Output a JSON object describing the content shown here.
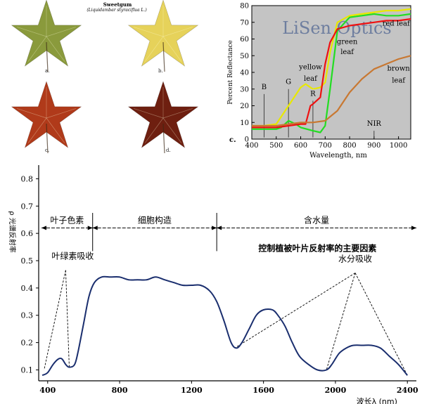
{
  "leaves": {
    "title": "Sweetgum",
    "subtitle": "(Liquidambar styraciflua L.)",
    "labels": [
      "a.",
      "b.",
      "c.",
      "d."
    ],
    "colors": [
      "#8a9a3c",
      "#e6d25a",
      "#b03a1a",
      "#6e1f10"
    ]
  },
  "chart_data": [
    {
      "type": "line",
      "xlabel": "Wavelength, nm",
      "ylabel": "Percent Reflectance",
      "xlim": [
        400,
        1050
      ],
      "ylim": [
        0,
        80
      ],
      "xticks": [
        400,
        500,
        600,
        700,
        800,
        900,
        1000
      ],
      "yticks": [
        0,
        10,
        20,
        30,
        40,
        50,
        60,
        70,
        80
      ],
      "panel_label": "c.",
      "watermark": "LiSen Optics",
      "band_markers": [
        {
          "label": "B",
          "x": 450
        },
        {
          "label": "G",
          "x": 550
        },
        {
          "label": "R",
          "x": 650
        },
        {
          "label": "NIR",
          "x": 900
        }
      ],
      "series": [
        {
          "name": "green leaf",
          "color": "#22dd22",
          "x": [
            400,
            450,
            500,
            520,
            550,
            580,
            600,
            650,
            680,
            700,
            720,
            750,
            800,
            850,
            900,
            950,
            1000,
            1050
          ],
          "y": [
            6,
            6,
            6,
            7,
            11,
            9,
            7,
            5,
            4,
            8,
            30,
            65,
            73,
            74,
            75,
            74,
            74,
            75
          ]
        },
        {
          "name": "yellow leaf",
          "color": "#e8e800",
          "x": [
            400,
            450,
            500,
            550,
            600,
            620,
            650,
            680,
            700,
            720,
            750,
            800,
            850,
            900,
            950,
            1000,
            1050
          ],
          "y": [
            8,
            8,
            9,
            20,
            31,
            33,
            30,
            31,
            34,
            52,
            70,
            74,
            75,
            76,
            77,
            77,
            78
          ]
        },
        {
          "name": "red leaf",
          "color": "#ee1111",
          "x": [
            400,
            450,
            500,
            550,
            600,
            620,
            640,
            650,
            680,
            700,
            720,
            750,
            800,
            850,
            900,
            950,
            1000,
            1050
          ],
          "y": [
            7,
            7,
            7,
            8,
            9,
            9,
            20,
            21,
            25,
            45,
            58,
            66,
            68,
            69,
            70,
            71,
            71,
            72
          ]
        },
        {
          "name": "brown leaf",
          "color": "#c87832",
          "x": [
            400,
            450,
            500,
            550,
            600,
            650,
            700,
            750,
            800,
            850,
            900,
            950,
            1000,
            1050
          ],
          "y": [
            8,
            8,
            8,
            9,
            10,
            10,
            11,
            17,
            28,
            36,
            42,
            45,
            48,
            50
          ]
        }
      ]
    },
    {
      "type": "line",
      "xlabel": "波长λ (nm)",
      "ylabel": "ρ 光谱反射率",
      "xlim": [
        350,
        2450
      ],
      "ylim": [
        0.06,
        0.85
      ],
      "xticks": [
        400,
        800,
        1200,
        1600,
        2000,
        2400
      ],
      "yticks": [
        0.1,
        0.2,
        0.3,
        0.4,
        0.5,
        0.6,
        0.7,
        0.8
      ],
      "heading": "控制植被叶片反射率的主要因素",
      "regions": [
        {
          "label": "叶子色素",
          "x0": 350,
          "x1": 650
        },
        {
          "label": "细胞构造",
          "x0": 650,
          "x1": 1340
        },
        {
          "label": "含水量",
          "x0": 1340,
          "x1": 2450
        }
      ],
      "annotations": [
        {
          "label": "叶绿素吸收",
          "apex": [
            500,
            0.465
          ],
          "targets": [
            [
              380,
              0.1
            ],
            [
              520,
              0.11
            ]
          ]
        },
        {
          "label": "水分吸收",
          "apex": [
            2110,
            0.455
          ],
          "targets": [
            [
              1440,
              0.18
            ],
            [
              1950,
              0.1
            ],
            [
              2400,
              0.08
            ]
          ]
        }
      ],
      "series": [
        {
          "name": "",
          "color": "#1a2e6e",
          "x": [
            370,
            400,
            430,
            460,
            480,
            500,
            520,
            550,
            570,
            600,
            630,
            660,
            700,
            750,
            800,
            850,
            900,
            950,
            1000,
            1050,
            1100,
            1150,
            1200,
            1250,
            1300,
            1340,
            1380,
            1420,
            1450,
            1480,
            1520,
            1560,
            1600,
            1650,
            1680,
            1720,
            1760,
            1800,
            1850,
            1900,
            1950,
            1980,
            2020,
            2060,
            2100,
            2150,
            2200,
            2250,
            2300,
            2350,
            2400
          ],
          "y": [
            0.08,
            0.09,
            0.12,
            0.14,
            0.14,
            0.12,
            0.11,
            0.12,
            0.17,
            0.27,
            0.37,
            0.42,
            0.44,
            0.44,
            0.44,
            0.43,
            0.43,
            0.43,
            0.44,
            0.43,
            0.42,
            0.41,
            0.41,
            0.41,
            0.39,
            0.35,
            0.28,
            0.2,
            0.18,
            0.2,
            0.25,
            0.3,
            0.32,
            0.32,
            0.3,
            0.26,
            0.2,
            0.15,
            0.12,
            0.1,
            0.1,
            0.12,
            0.16,
            0.18,
            0.19,
            0.19,
            0.19,
            0.18,
            0.15,
            0.12,
            0.08
          ]
        }
      ]
    }
  ]
}
